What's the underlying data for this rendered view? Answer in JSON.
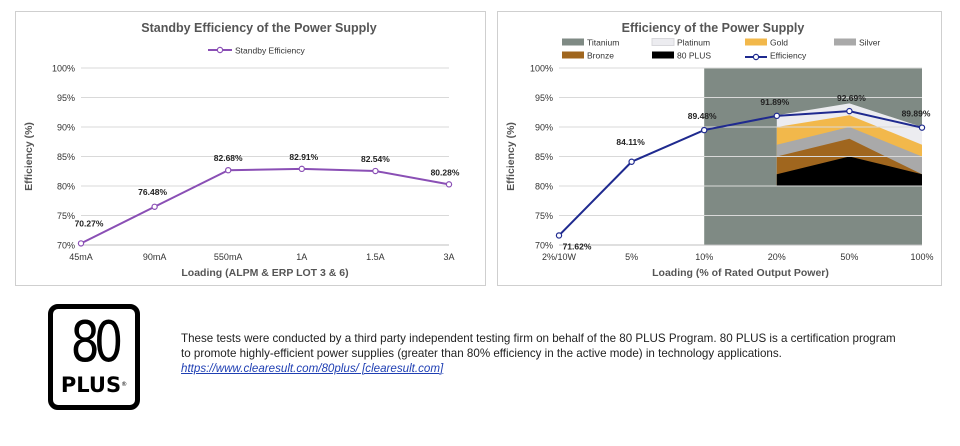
{
  "chart_data": [
    {
      "type": "line",
      "title": "Standby Efficiency of the Power Supply",
      "xlabel": "Loading (ALPM & ERP LOT 3 & 6)",
      "ylabel": "Efficiency (%)",
      "categories": [
        "45mA",
        "90mA",
        "550mA",
        "1A",
        "1.5A",
        "3A"
      ],
      "ylim": [
        70,
        100
      ],
      "yticks": [
        "70%",
        "75%",
        "80%",
        "85%",
        "90%",
        "95%",
        "100%"
      ],
      "grid": true,
      "legend": "top-center",
      "series": [
        {
          "name": "Standby Efficiency",
          "color": "#8a4fb5",
          "values": [
            70.27,
            76.48,
            82.68,
            82.91,
            82.54,
            80.28
          ],
          "labels": [
            "70.27%",
            "76.48%",
            "82.68%",
            "82.91%",
            "82.54%",
            "80.28%"
          ]
        }
      ]
    },
    {
      "type": "line",
      "title": "Efficiency of the Power Supply",
      "xlabel": "Loading (% of Rated Output Power)",
      "ylabel": "Efficiency (%)",
      "categories": [
        "2%/10W",
        "5%",
        "10%",
        "20%",
        "50%",
        "100%"
      ],
      "ylim": [
        70,
        100
      ],
      "yticks": [
        "70%",
        "75%",
        "80%",
        "85%",
        "90%",
        "95%",
        "100%"
      ],
      "grid": true,
      "legend": "top",
      "series": [
        {
          "name": "Efficiency",
          "color": "#1f2a8f",
          "values": [
            71.62,
            84.11,
            89.48,
            91.89,
            92.69,
            89.89
          ],
          "labels": [
            "71.62%",
            "84.11%",
            "89.48%",
            "91.89%",
            "92.69%",
            "89.89%"
          ]
        }
      ],
      "bands": [
        {
          "name": "Titanium",
          "color": "#7f8a84",
          "values": [
            null,
            null,
            100,
            100,
            100,
            100
          ]
        },
        {
          "name": "Platinum",
          "color": "#ececf0",
          "values": [
            null,
            null,
            null,
            92,
            94,
            90
          ]
        },
        {
          "name": "Gold",
          "color": "#f2b84b",
          "values": [
            null,
            null,
            null,
            90,
            92,
            87
          ]
        },
        {
          "name": "Silver",
          "color": "#a9a9a9",
          "values": [
            null,
            null,
            null,
            87,
            90,
            85
          ]
        },
        {
          "name": "Bronze",
          "color": "#a0661e",
          "values": [
            null,
            null,
            null,
            85,
            88,
            82
          ]
        },
        {
          "name": "80 PLUS",
          "color": "#000000",
          "values": [
            null,
            null,
            null,
            82,
            85,
            82
          ]
        }
      ],
      "band_floor": 80,
      "legend_order": [
        "Titanium",
        "Platinum",
        "Gold",
        "Silver",
        "Bronze",
        "80 PLUS",
        "Efficiency"
      ]
    }
  ],
  "logo": {
    "big": "80",
    "small": "PLUS",
    "mark": "®"
  },
  "note": {
    "text": "These tests were conducted by a third party independent testing firm on behalf of the 80 PLUS Program. 80 PLUS is a certification program to promote highly-efficient power supplies (greater than 80% efficiency in the active mode) in technology applications.",
    "link": "https://www.clearesult.com/80plus/ [clearesult.com]"
  }
}
